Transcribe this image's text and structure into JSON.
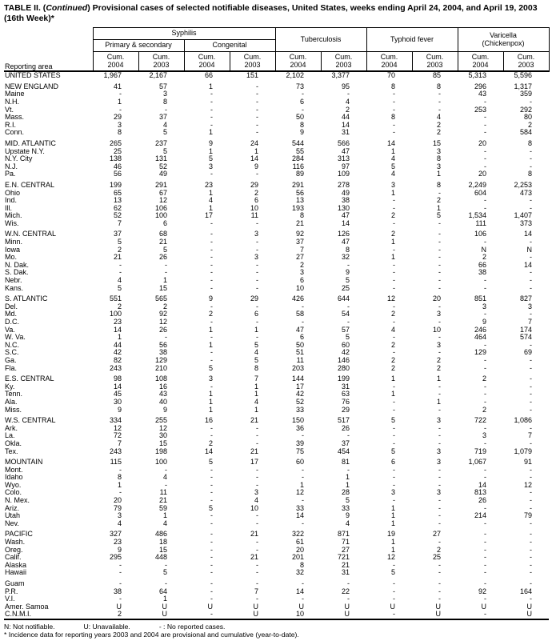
{
  "title": {
    "prefix": "TABLE II. (",
    "italic": "Continued",
    "suffix": ") Provisional cases of selected notifiable diseases, United States, weeks ending April 24, 2004, and April 19, 2003",
    "line2": "(16th Week)*"
  },
  "table": {
    "header": {
      "reporting_area": "Reporting area",
      "syphilis": "Syphilis",
      "primary_secondary": "Primary & secondary",
      "congenital": "Congenital",
      "tuberculosis": "Tuberculosis",
      "typhoid": "Typhoid fever",
      "varicella_line1": "Varicella",
      "varicella_line2": "(Chickenpox)",
      "cum_label": "Cum.",
      "years": [
        "2004",
        "2003"
      ]
    },
    "rows": [
      {
        "area": "UNITED STATES",
        "cls": "total",
        "gap": false,
        "values": [
          "1,967",
          "2,167",
          "66",
          "151",
          "2,102",
          "3,377",
          "70",
          "85",
          "5,313",
          "5,596"
        ]
      },
      {
        "area": "NEW ENGLAND",
        "cls": "region",
        "gap": true,
        "values": [
          "41",
          "57",
          "1",
          "-",
          "73",
          "95",
          "8",
          "8",
          "296",
          "1,317"
        ]
      },
      {
        "area": "Maine",
        "cls": "state",
        "gap": false,
        "values": [
          "-",
          "3",
          "-",
          "-",
          "-",
          "-",
          "-",
          "-",
          "43",
          "359"
        ]
      },
      {
        "area": "N.H.",
        "cls": "state",
        "gap": false,
        "values": [
          "1",
          "8",
          "-",
          "-",
          "6",
          "4",
          "-",
          "-",
          "-",
          "-"
        ]
      },
      {
        "area": "Vt.",
        "cls": "state",
        "gap": false,
        "values": [
          "-",
          "-",
          "-",
          "-",
          "-",
          "2",
          "-",
          "-",
          "253",
          "292"
        ]
      },
      {
        "area": "Mass.",
        "cls": "state",
        "gap": false,
        "values": [
          "29",
          "37",
          "-",
          "-",
          "50",
          "44",
          "8",
          "4",
          "-",
          "80"
        ]
      },
      {
        "area": "R.I.",
        "cls": "state",
        "gap": false,
        "values": [
          "3",
          "4",
          "-",
          "-",
          "8",
          "14",
          "-",
          "2",
          "-",
          "2"
        ]
      },
      {
        "area": "Conn.",
        "cls": "state",
        "gap": false,
        "values": [
          "8",
          "5",
          "1",
          "-",
          "9",
          "31",
          "-",
          "2",
          "-",
          "584"
        ]
      },
      {
        "area": "MID. ATLANTIC",
        "cls": "region",
        "gap": true,
        "values": [
          "265",
          "237",
          "9",
          "24",
          "544",
          "566",
          "14",
          "15",
          "20",
          "8"
        ]
      },
      {
        "area": "Upstate N.Y.",
        "cls": "state",
        "gap": false,
        "values": [
          "25",
          "5",
          "1",
          "1",
          "55",
          "47",
          "1",
          "3",
          "-",
          "-"
        ]
      },
      {
        "area": "N.Y. City",
        "cls": "state",
        "gap": false,
        "values": [
          "138",
          "131",
          "5",
          "14",
          "284",
          "313",
          "4",
          "8",
          "-",
          "-"
        ]
      },
      {
        "area": "N.J.",
        "cls": "state",
        "gap": false,
        "values": [
          "46",
          "52",
          "3",
          "9",
          "116",
          "97",
          "5",
          "3",
          "-",
          "-"
        ]
      },
      {
        "area": "Pa.",
        "cls": "state",
        "gap": false,
        "values": [
          "56",
          "49",
          "-",
          "-",
          "89",
          "109",
          "4",
          "1",
          "20",
          "8"
        ]
      },
      {
        "area": "E.N. CENTRAL",
        "cls": "region",
        "gap": true,
        "values": [
          "199",
          "291",
          "23",
          "29",
          "291",
          "278",
          "3",
          "8",
          "2,249",
          "2,253"
        ]
      },
      {
        "area": "Ohio",
        "cls": "state",
        "gap": false,
        "values": [
          "65",
          "67",
          "1",
          "2",
          "56",
          "49",
          "1",
          "-",
          "604",
          "473"
        ]
      },
      {
        "area": "Ind.",
        "cls": "state",
        "gap": false,
        "values": [
          "13",
          "12",
          "4",
          "6",
          "13",
          "38",
          "-",
          "2",
          "-",
          "-"
        ]
      },
      {
        "area": "Ill.",
        "cls": "state",
        "gap": false,
        "values": [
          "62",
          "106",
          "1",
          "10",
          "193",
          "130",
          "-",
          "1",
          "-",
          "-"
        ]
      },
      {
        "area": "Mich.",
        "cls": "state",
        "gap": false,
        "values": [
          "52",
          "100",
          "17",
          "11",
          "8",
          "47",
          "2",
          "5",
          "1,534",
          "1,407"
        ]
      },
      {
        "area": "Wis.",
        "cls": "state",
        "gap": false,
        "values": [
          "7",
          "6",
          "-",
          "-",
          "21",
          "14",
          "-",
          "-",
          "111",
          "373"
        ]
      },
      {
        "area": "W.N. CENTRAL",
        "cls": "region",
        "gap": true,
        "values": [
          "37",
          "68",
          "-",
          "3",
          "92",
          "126",
          "2",
          "-",
          "106",
          "14"
        ]
      },
      {
        "area": "Minn.",
        "cls": "state",
        "gap": false,
        "values": [
          "5",
          "21",
          "-",
          "-",
          "37",
          "47",
          "1",
          "-",
          "-",
          "-"
        ]
      },
      {
        "area": "Iowa",
        "cls": "state",
        "gap": false,
        "values": [
          "2",
          "5",
          "-",
          "-",
          "7",
          "8",
          "-",
          "-",
          "N",
          "N"
        ]
      },
      {
        "area": "Mo.",
        "cls": "state",
        "gap": false,
        "values": [
          "21",
          "26",
          "-",
          "3",
          "27",
          "32",
          "1",
          "-",
          "2",
          "-"
        ]
      },
      {
        "area": "N. Dak.",
        "cls": "state",
        "gap": false,
        "values": [
          "-",
          "-",
          "-",
          "-",
          "2",
          "-",
          "-",
          "-",
          "66",
          "14"
        ]
      },
      {
        "area": "S. Dak.",
        "cls": "state",
        "gap": false,
        "values": [
          "-",
          "-",
          "-",
          "-",
          "3",
          "9",
          "-",
          "-",
          "38",
          "-"
        ]
      },
      {
        "area": "Nebr.",
        "cls": "state",
        "gap": false,
        "values": [
          "4",
          "1",
          "-",
          "-",
          "6",
          "5",
          "-",
          "-",
          "-",
          "-"
        ]
      },
      {
        "area": "Kans.",
        "cls": "state",
        "gap": false,
        "values": [
          "5",
          "15",
          "-",
          "-",
          "10",
          "25",
          "-",
          "-",
          "-",
          "-"
        ]
      },
      {
        "area": "S. ATLANTIC",
        "cls": "region",
        "gap": true,
        "values": [
          "551",
          "565",
          "9",
          "29",
          "426",
          "644",
          "12",
          "20",
          "851",
          "827"
        ]
      },
      {
        "area": "Del.",
        "cls": "state",
        "gap": false,
        "values": [
          "2",
          "2",
          "-",
          "-",
          "-",
          "-",
          "-",
          "-",
          "3",
          "3"
        ]
      },
      {
        "area": "Md.",
        "cls": "state",
        "gap": false,
        "values": [
          "100",
          "92",
          "2",
          "6",
          "58",
          "54",
          "2",
          "3",
          "-",
          "-"
        ]
      },
      {
        "area": "D.C.",
        "cls": "state",
        "gap": false,
        "values": [
          "23",
          "12",
          "-",
          "-",
          "-",
          "-",
          "-",
          "-",
          "9",
          "7"
        ]
      },
      {
        "area": "Va.",
        "cls": "state",
        "gap": false,
        "values": [
          "14",
          "26",
          "1",
          "1",
          "47",
          "57",
          "4",
          "10",
          "246",
          "174"
        ]
      },
      {
        "area": "W. Va.",
        "cls": "state",
        "gap": false,
        "values": [
          "1",
          "-",
          "-",
          "-",
          "6",
          "5",
          "-",
          "-",
          "464",
          "574"
        ]
      },
      {
        "area": "N.C.",
        "cls": "state",
        "gap": false,
        "values": [
          "44",
          "56",
          "1",
          "5",
          "50",
          "60",
          "2",
          "3",
          "-",
          "-"
        ]
      },
      {
        "area": "S.C.",
        "cls": "state",
        "gap": false,
        "values": [
          "42",
          "38",
          "-",
          "4",
          "51",
          "42",
          "-",
          "-",
          "129",
          "69"
        ]
      },
      {
        "area": "Ga.",
        "cls": "state",
        "gap": false,
        "values": [
          "82",
          "129",
          "-",
          "5",
          "11",
          "146",
          "2",
          "2",
          "-",
          "-"
        ]
      },
      {
        "area": "Fla.",
        "cls": "state",
        "gap": false,
        "values": [
          "243",
          "210",
          "5",
          "8",
          "203",
          "280",
          "2",
          "2",
          "-",
          "-"
        ]
      },
      {
        "area": "E.S. CENTRAL",
        "cls": "region",
        "gap": true,
        "values": [
          "98",
          "108",
          "3",
          "7",
          "144",
          "199",
          "1",
          "1",
          "2",
          "-"
        ]
      },
      {
        "area": "Ky.",
        "cls": "state",
        "gap": false,
        "values": [
          "14",
          "16",
          "-",
          "1",
          "17",
          "31",
          "-",
          "-",
          "-",
          "-"
        ]
      },
      {
        "area": "Tenn.",
        "cls": "state",
        "gap": false,
        "values": [
          "45",
          "43",
          "1",
          "1",
          "42",
          "63",
          "1",
          "-",
          "-",
          "-"
        ]
      },
      {
        "area": "Ala.",
        "cls": "state",
        "gap": false,
        "values": [
          "30",
          "40",
          "1",
          "4",
          "52",
          "76",
          "-",
          "1",
          "-",
          "-"
        ]
      },
      {
        "area": "Miss.",
        "cls": "state",
        "gap": false,
        "values": [
          "9",
          "9",
          "1",
          "1",
          "33",
          "29",
          "-",
          "-",
          "2",
          "-"
        ]
      },
      {
        "area": "W.S. CENTRAL",
        "cls": "region",
        "gap": true,
        "values": [
          "334",
          "255",
          "16",
          "21",
          "150",
          "517",
          "5",
          "3",
          "722",
          "1,086"
        ]
      },
      {
        "area": "Ark.",
        "cls": "state",
        "gap": false,
        "values": [
          "12",
          "12",
          "-",
          "-",
          "36",
          "26",
          "-",
          "-",
          "-",
          "-"
        ]
      },
      {
        "area": "La.",
        "cls": "state",
        "gap": false,
        "values": [
          "72",
          "30",
          "-",
          "-",
          "-",
          "-",
          "-",
          "-",
          "3",
          "7"
        ]
      },
      {
        "area": "Okla.",
        "cls": "state",
        "gap": false,
        "values": [
          "7",
          "15",
          "2",
          "-",
          "39",
          "37",
          "-",
          "-",
          "-",
          "-"
        ]
      },
      {
        "area": "Tex.",
        "cls": "state",
        "gap": false,
        "values": [
          "243",
          "198",
          "14",
          "21",
          "75",
          "454",
          "5",
          "3",
          "719",
          "1,079"
        ]
      },
      {
        "area": "MOUNTAIN",
        "cls": "region",
        "gap": true,
        "values": [
          "115",
          "100",
          "5",
          "17",
          "60",
          "81",
          "6",
          "3",
          "1,067",
          "91"
        ]
      },
      {
        "area": "Mont.",
        "cls": "state",
        "gap": false,
        "values": [
          "-",
          "-",
          "-",
          "-",
          "-",
          "-",
          "-",
          "-",
          "-",
          "-"
        ]
      },
      {
        "area": "Idaho",
        "cls": "state",
        "gap": false,
        "values": [
          "8",
          "4",
          "-",
          "-",
          "-",
          "1",
          "-",
          "-",
          "-",
          "-"
        ]
      },
      {
        "area": "Wyo.",
        "cls": "state",
        "gap": false,
        "values": [
          "1",
          "-",
          "-",
          "-",
          "1",
          "1",
          "-",
          "-",
          "14",
          "12"
        ]
      },
      {
        "area": "Colo.",
        "cls": "state",
        "gap": false,
        "values": [
          "-",
          "11",
          "-",
          "3",
          "12",
          "28",
          "3",
          "3",
          "813",
          "-"
        ]
      },
      {
        "area": "N. Mex.",
        "cls": "state",
        "gap": false,
        "values": [
          "20",
          "21",
          "-",
          "4",
          "-",
          "5",
          "-",
          "-",
          "26",
          "-"
        ]
      },
      {
        "area": "Ariz.",
        "cls": "state",
        "gap": false,
        "values": [
          "79",
          "59",
          "5",
          "10",
          "33",
          "33",
          "1",
          "-",
          "-",
          "-"
        ]
      },
      {
        "area": "Utah",
        "cls": "state",
        "gap": false,
        "values": [
          "3",
          "1",
          "-",
          "-",
          "14",
          "9",
          "1",
          "-",
          "214",
          "79"
        ]
      },
      {
        "area": "Nev.",
        "cls": "state",
        "gap": false,
        "values": [
          "4",
          "4",
          "-",
          "-",
          "-",
          "4",
          "1",
          "-",
          "-",
          "-"
        ]
      },
      {
        "area": "PACIFIC",
        "cls": "region",
        "gap": true,
        "values": [
          "327",
          "486",
          "-",
          "21",
          "322",
          "871",
          "19",
          "27",
          "-",
          "-"
        ]
      },
      {
        "area": "Wash.",
        "cls": "state",
        "gap": false,
        "values": [
          "23",
          "18",
          "-",
          "-",
          "61",
          "71",
          "1",
          "-",
          "-",
          "-"
        ]
      },
      {
        "area": "Oreg.",
        "cls": "state",
        "gap": false,
        "values": [
          "9",
          "15",
          "-",
          "-",
          "20",
          "27",
          "1",
          "2",
          "-",
          "-"
        ]
      },
      {
        "area": "Calif.",
        "cls": "state",
        "gap": false,
        "values": [
          "295",
          "448",
          "-",
          "21",
          "201",
          "721",
          "12",
          "25",
          "-",
          "-"
        ]
      },
      {
        "area": "Alaska",
        "cls": "state",
        "gap": false,
        "values": [
          "-",
          "-",
          "-",
          "-",
          "8",
          "21",
          "-",
          "-",
          "-",
          "-"
        ]
      },
      {
        "area": "Hawaii",
        "cls": "state",
        "gap": false,
        "values": [
          "-",
          "5",
          "-",
          "-",
          "32",
          "31",
          "5",
          "-",
          "-",
          "-"
        ]
      },
      {
        "area": "Guam",
        "cls": "state",
        "gap": true,
        "values": [
          "-",
          "-",
          "-",
          "-",
          "-",
          "-",
          "-",
          "-",
          "-",
          "-"
        ]
      },
      {
        "area": "P.R.",
        "cls": "state",
        "gap": false,
        "values": [
          "38",
          "64",
          "-",
          "7",
          "14",
          "22",
          "-",
          "-",
          "92",
          "164"
        ]
      },
      {
        "area": "V.I.",
        "cls": "state",
        "gap": false,
        "values": [
          "-",
          "1",
          "-",
          "-",
          "-",
          "-",
          "-",
          "-",
          "-",
          "-"
        ]
      },
      {
        "area": "Amer. Samoa",
        "cls": "state",
        "gap": false,
        "values": [
          "U",
          "U",
          "U",
          "U",
          "U",
          "U",
          "U",
          "U",
          "U",
          "U"
        ]
      },
      {
        "area": "C.N.M.I.",
        "cls": "state",
        "gap": false,
        "values": [
          "2",
          "U",
          "-",
          "U",
          "10",
          "U",
          "-",
          "U",
          "-",
          "U"
        ]
      }
    ]
  },
  "footnotes": {
    "legend_n": "N: Not notifiable.",
    "legend_u": "U: Unavailable.",
    "legend_dash": "- : No reported cases.",
    "note": "* Incidence data for reporting years 2003 and 2004 are provisional and cumulative (year-to-date)."
  }
}
